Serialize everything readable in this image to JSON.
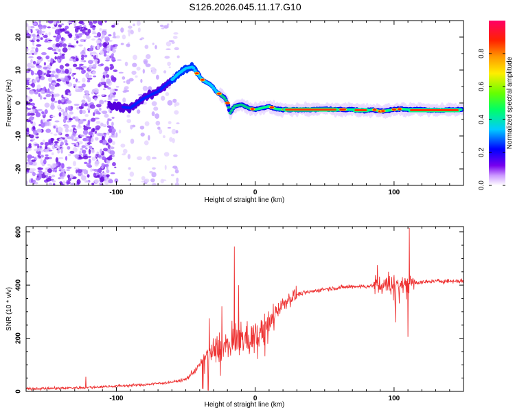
{
  "title": "S126.2026.045.11.17.G10",
  "chart_data": [
    {
      "type": "heatmap",
      "name": "spectrogram",
      "xlabel": "Height of straight line (km)",
      "ylabel": "Frequency (Hz)",
      "xlim": [
        -165,
        150
      ],
      "ylim": [
        -25,
        25
      ],
      "x_ticks": [
        -100,
        0,
        100
      ],
      "y_ticks": [
        -20,
        -10,
        0,
        10,
        20
      ],
      "ridge": {
        "x": [
          -100,
          -90,
          -80,
          -70,
          -60,
          -55,
          -50,
          -45,
          -42,
          -38,
          -32,
          -28,
          -25,
          -22,
          -20,
          -18,
          -15,
          -10,
          -5,
          0,
          5,
          10,
          15,
          20,
          30,
          40,
          50,
          60,
          70,
          80,
          85,
          90,
          95,
          100,
          105,
          110,
          120,
          130,
          140,
          148
        ],
        "y": [
          -1,
          -1.5,
          1.5,
          3.5,
          7,
          9,
          10.5,
          11,
          9,
          7,
          5.5,
          3.5,
          2.5,
          1.5,
          0,
          -3,
          -1,
          -0.5,
          -1.5,
          -2,
          -1.5,
          -1,
          -1.8,
          -2,
          -2,
          -2,
          -1.8,
          -2,
          -2,
          -2.3,
          -2,
          -2.5,
          -2.3,
          -2,
          -1.8,
          -2,
          -2,
          -2.2,
          -2.1,
          -2
        ]
      },
      "colorbar": {
        "label": "Normalized spectral amplitude",
        "range": [
          0,
          1
        ],
        "ticks": [
          "0.0",
          "0.2",
          "0.4",
          "0.6",
          "0.8"
        ]
      }
    },
    {
      "type": "line",
      "name": "snr",
      "xlabel": "Height of straight line (km)",
      "ylabel": "SNR (10 * v/v)",
      "xlim": [
        -165,
        150
      ],
      "ylim": [
        0,
        620
      ],
      "x_ticks": [
        -100,
        0,
        100
      ],
      "y_ticks": [
        0,
        200,
        400,
        600
      ],
      "color": "#ee3333",
      "trend": {
        "x": [
          -165,
          -140,
          -120,
          -100,
          -80,
          -60,
          -50,
          -45,
          -40,
          -35,
          -30,
          -25,
          -20,
          -15,
          -10,
          -5,
          0,
          5,
          10,
          15,
          20,
          25,
          30,
          40,
          50,
          60,
          70,
          80,
          90,
          100,
          110,
          120,
          130,
          140,
          150
        ],
        "y": [
          10,
          12,
          15,
          20,
          25,
          35,
          45,
          70,
          100,
          140,
          150,
          170,
          175,
          190,
          200,
          200,
          210,
          230,
          250,
          300,
          330,
          350,
          365,
          375,
          385,
          390,
          395,
          395,
          400,
          405,
          410,
          410,
          415,
          415,
          415
        ]
      },
      "spikes": [
        {
          "x": -122,
          "y": 55
        },
        {
          "x": -33,
          "y": 275
        },
        {
          "x": -15,
          "y": 545
        },
        {
          "x": -12,
          "y": 400
        },
        {
          "x": -24,
          "y": 320
        },
        {
          "x": 88,
          "y": 475
        },
        {
          "x": 96,
          "y": 450
        },
        {
          "x": 101,
          "y": 260
        },
        {
          "x": 110,
          "y": 205
        },
        {
          "x": 111,
          "y": 615
        }
      ]
    }
  ]
}
